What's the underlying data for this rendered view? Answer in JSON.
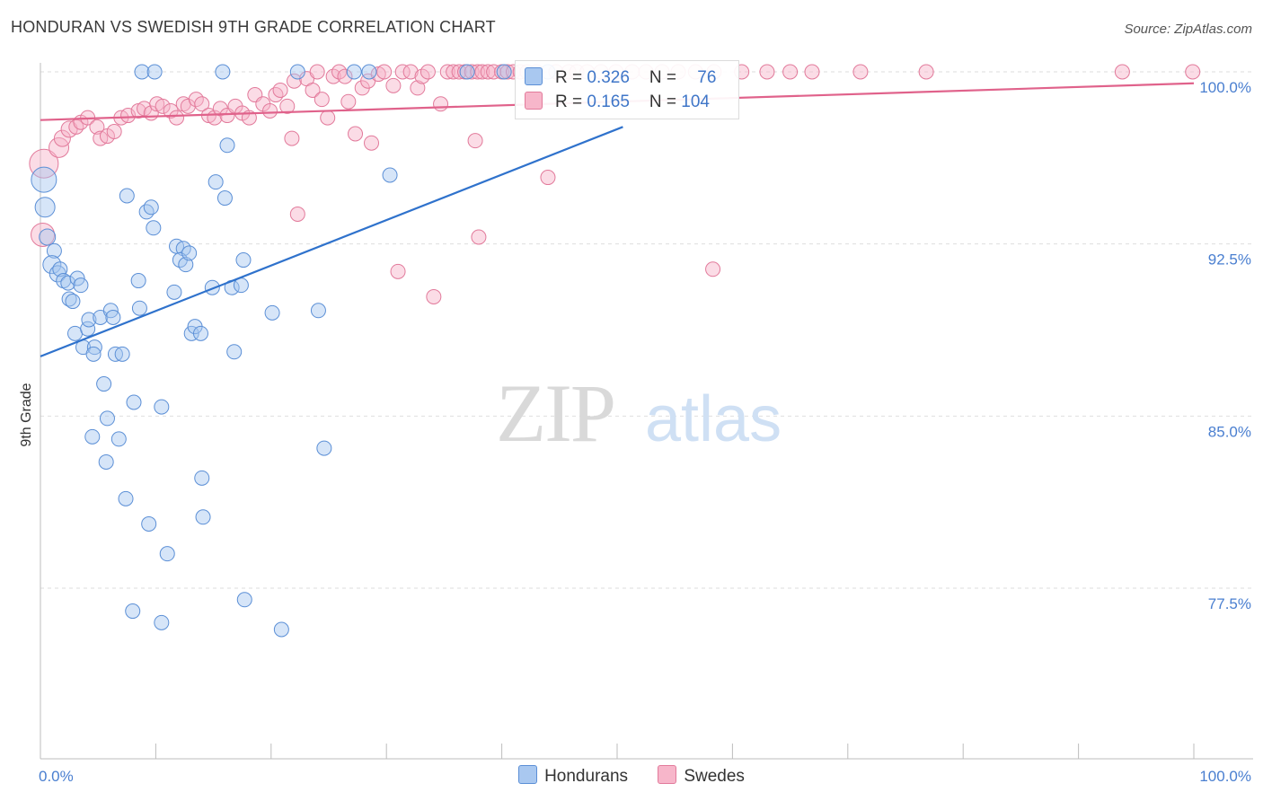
{
  "title": "HONDURAN VS SWEDISH 9TH GRADE CORRELATION CHART",
  "source": "Source: ZipAtlas.com",
  "watermark": {
    "zip": "ZIP",
    "atlas": "atlas"
  },
  "legend": {
    "rows": [
      {
        "r_label": "R = ",
        "r_value": "0.326",
        "n_label": "N = ",
        "n_value": "76",
        "color": "#a9c8f0",
        "border": "#5b8fd6"
      },
      {
        "r_label": "R = ",
        "r_value": "0.165",
        "n_label": "N = ",
        "n_value": "104",
        "color": "#f7b6ca",
        "border": "#e27a9b"
      }
    ]
  },
  "bottom_legend": [
    {
      "label": "Hondurans",
      "color": "#a9c8f0",
      "border": "#5b8fd6"
    },
    {
      "label": "Swedes",
      "color": "#f7b6ca",
      "border": "#e27a9b"
    }
  ],
  "chart_data": {
    "type": "scatter",
    "title": "HONDURAN VS SWEDISH 9TH GRADE CORRELATION CHART",
    "xlabel": "",
    "ylabel": "9th Grade",
    "xlim": [
      0,
      100
    ],
    "ylim": [
      70,
      100.5
    ],
    "x_tick_labels": [
      "0.0%",
      "100.0%"
    ],
    "y_ticks": [
      77.5,
      85.0,
      92.5,
      100.0
    ],
    "y_tick_labels": [
      "77.5%",
      "85.0%",
      "92.5%",
      "100.0%"
    ],
    "grid": true,
    "legend_position": "top-center",
    "colors": {
      "hondurans": "#5b8fd6",
      "swedes": "#e27a9b",
      "hondurans_line": "#2f72cc",
      "swedes_line": "#e0628b"
    },
    "series": [
      {
        "name": "Hondurans",
        "r": 0.326,
        "n": 76,
        "trend": {
          "x": [
            0,
            50.5
          ],
          "y": [
            87.6,
            97.6
          ]
        },
        "points": [
          [
            0.3,
            95.3,
            14
          ],
          [
            0.4,
            94.1,
            11
          ],
          [
            0.6,
            92.8,
            9
          ],
          [
            1.2,
            92.2,
            8
          ],
          [
            1.0,
            91.6,
            10
          ],
          [
            1.5,
            91.2,
            9
          ],
          [
            1.7,
            91.4,
            8
          ],
          [
            2.0,
            90.9,
            8
          ],
          [
            2.4,
            90.8,
            8
          ],
          [
            3.2,
            91.0,
            8
          ],
          [
            3.5,
            90.7,
            8
          ],
          [
            2.5,
            90.1,
            8
          ],
          [
            2.8,
            90.0,
            8
          ],
          [
            3.0,
            88.6,
            8
          ],
          [
            4.1,
            88.8,
            8
          ],
          [
            4.2,
            89.2,
            8
          ],
          [
            5.2,
            89.3,
            8
          ],
          [
            6.1,
            89.6,
            8
          ],
          [
            6.3,
            89.3,
            8
          ],
          [
            3.7,
            88.0,
            8
          ],
          [
            4.7,
            88.0,
            8
          ],
          [
            4.6,
            87.7,
            8
          ],
          [
            6.5,
            87.7,
            8
          ],
          [
            7.1,
            87.7,
            8
          ],
          [
            5.5,
            86.4,
            8
          ],
          [
            8.1,
            85.6,
            8
          ],
          [
            5.8,
            84.9,
            8
          ],
          [
            10.5,
            85.4,
            8
          ],
          [
            4.5,
            84.1,
            8
          ],
          [
            6.8,
            84.0,
            8
          ],
          [
            5.7,
            83.0,
            8
          ],
          [
            7.4,
            81.4,
            8
          ],
          [
            9.4,
            80.3,
            8
          ],
          [
            11.0,
            79.0,
            8
          ],
          [
            8.0,
            76.5,
            8
          ],
          [
            10.5,
            76.0,
            8
          ],
          [
            14.1,
            80.6,
            8
          ],
          [
            14.0,
            82.3,
            8
          ],
          [
            17.7,
            77.0,
            8
          ],
          [
            20.9,
            75.7,
            8
          ],
          [
            8.6,
            89.7,
            8
          ],
          [
            8.5,
            90.9,
            8
          ],
          [
            9.2,
            93.9,
            8
          ],
          [
            9.6,
            94.1,
            8
          ],
          [
            9.8,
            93.2,
            8
          ],
          [
            7.5,
            94.6,
            8
          ],
          [
            11.6,
            90.4,
            8
          ],
          [
            11.8,
            92.4,
            8
          ],
          [
            12.4,
            92.3,
            8
          ],
          [
            12.1,
            91.8,
            8
          ],
          [
            12.6,
            91.6,
            8
          ],
          [
            12.9,
            92.1,
            8
          ],
          [
            13.1,
            88.6,
            8
          ],
          [
            13.4,
            88.9,
            8
          ],
          [
            13.9,
            88.6,
            8
          ],
          [
            14.9,
            90.6,
            8
          ],
          [
            15.2,
            95.2,
            8
          ],
          [
            16.0,
            94.5,
            8
          ],
          [
            16.2,
            96.8,
            8
          ],
          [
            16.6,
            90.6,
            8
          ],
          [
            16.8,
            87.8,
            8
          ],
          [
            17.4,
            90.7,
            8
          ],
          [
            17.6,
            91.8,
            8
          ],
          [
            20.1,
            89.5,
            8
          ],
          [
            24.1,
            89.6,
            8
          ],
          [
            24.6,
            83.6,
            8
          ],
          [
            30.3,
            95.5,
            8
          ],
          [
            8.8,
            100.0,
            8
          ],
          [
            9.9,
            100.0,
            8
          ],
          [
            15.8,
            100.0,
            8
          ],
          [
            22.3,
            100.0,
            8
          ],
          [
            27.2,
            100.0,
            8
          ],
          [
            28.5,
            100.0,
            8
          ],
          [
            37.0,
            100.0,
            8
          ],
          [
            40.2,
            100.0,
            8
          ],
          [
            44.0,
            100.0,
            8
          ]
        ]
      },
      {
        "name": "Swedes",
        "r": 0.165,
        "n": 104,
        "trend": {
          "x": [
            0,
            100
          ],
          "y": [
            97.9,
            99.5
          ]
        },
        "points": [
          [
            0.3,
            96.0,
            16
          ],
          [
            0.2,
            92.9,
            13
          ],
          [
            1.6,
            96.7,
            11
          ],
          [
            1.9,
            97.1,
            9
          ],
          [
            2.5,
            97.5,
            9
          ],
          [
            3.1,
            97.6,
            8
          ],
          [
            3.5,
            97.8,
            8
          ],
          [
            4.1,
            98.0,
            8
          ],
          [
            4.9,
            97.6,
            8
          ],
          [
            5.2,
            97.1,
            8
          ],
          [
            5.8,
            97.2,
            8
          ],
          [
            6.4,
            97.4,
            8
          ],
          [
            7.0,
            98.0,
            8
          ],
          [
            7.6,
            98.1,
            8
          ],
          [
            8.5,
            98.3,
            8
          ],
          [
            9.0,
            98.4,
            8
          ],
          [
            9.6,
            98.2,
            8
          ],
          [
            10.1,
            98.6,
            8
          ],
          [
            10.6,
            98.5,
            8
          ],
          [
            11.3,
            98.3,
            8
          ],
          [
            11.8,
            98.0,
            8
          ],
          [
            12.4,
            98.6,
            8
          ],
          [
            12.8,
            98.5,
            8
          ],
          [
            13.5,
            98.8,
            8
          ],
          [
            14.0,
            98.6,
            8
          ],
          [
            14.6,
            98.1,
            8
          ],
          [
            15.1,
            98.0,
            8
          ],
          [
            15.6,
            98.4,
            8
          ],
          [
            16.2,
            98.1,
            8
          ],
          [
            16.9,
            98.5,
            8
          ],
          [
            17.5,
            98.2,
            8
          ],
          [
            18.1,
            98.0,
            8
          ],
          [
            18.6,
            99.0,
            8
          ],
          [
            19.3,
            98.6,
            8
          ],
          [
            19.9,
            98.3,
            8
          ],
          [
            20.4,
            99.0,
            8
          ],
          [
            20.8,
            99.2,
            8
          ],
          [
            21.4,
            98.5,
            8
          ],
          [
            21.8,
            97.1,
            8
          ],
          [
            22.3,
            93.8,
            8
          ],
          [
            22.0,
            99.6,
            8
          ],
          [
            23.1,
            99.7,
            8
          ],
          [
            23.6,
            99.2,
            8
          ],
          [
            24.0,
            100.0,
            8
          ],
          [
            24.4,
            98.8,
            8
          ],
          [
            24.9,
            98.0,
            8
          ],
          [
            25.4,
            99.8,
            8
          ],
          [
            25.9,
            100.0,
            8
          ],
          [
            26.4,
            99.8,
            8
          ],
          [
            26.7,
            98.7,
            8
          ],
          [
            27.3,
            97.3,
            8
          ],
          [
            27.9,
            99.3,
            8
          ],
          [
            28.4,
            99.6,
            8
          ],
          [
            28.7,
            96.9,
            8
          ],
          [
            29.3,
            99.9,
            8
          ],
          [
            29.8,
            100.0,
            8
          ],
          [
            30.6,
            99.4,
            8
          ],
          [
            31.0,
            91.3,
            8
          ],
          [
            31.4,
            100.0,
            8
          ],
          [
            32.1,
            100.0,
            8
          ],
          [
            32.7,
            99.3,
            8
          ],
          [
            33.1,
            99.8,
            8
          ],
          [
            33.6,
            100.0,
            8
          ],
          [
            34.1,
            90.2,
            8
          ],
          [
            34.7,
            98.6,
            8
          ],
          [
            35.3,
            100.0,
            8
          ],
          [
            35.8,
            100.0,
            8
          ],
          [
            36.3,
            100.0,
            8
          ],
          [
            36.8,
            100.0,
            8
          ],
          [
            37.4,
            100.0,
            8
          ],
          [
            37.9,
            100.0,
            8
          ],
          [
            38.3,
            100.0,
            8
          ],
          [
            38.8,
            100.0,
            8
          ],
          [
            39.3,
            100.0,
            8
          ],
          [
            40.0,
            100.0,
            8
          ],
          [
            40.5,
            100.0,
            8
          ],
          [
            41.0,
            100.0,
            8
          ],
          [
            41.6,
            100.0,
            8
          ],
          [
            42.2,
            100.0,
            8
          ],
          [
            43.0,
            100.0,
            8
          ],
          [
            44.7,
            100.0,
            8
          ],
          [
            45.8,
            100.0,
            8
          ],
          [
            46.5,
            100.0,
            8
          ],
          [
            47.4,
            100.0,
            8
          ],
          [
            48.6,
            100.0,
            8
          ],
          [
            49.9,
            100.0,
            8
          ],
          [
            51.3,
            100.0,
            8
          ],
          [
            52.5,
            100.0,
            8
          ],
          [
            53.9,
            100.0,
            8
          ],
          [
            55.3,
            100.0,
            8
          ],
          [
            56.8,
            100.0,
            8
          ],
          [
            58.4,
            100.0,
            8
          ],
          [
            60.8,
            100.0,
            8
          ],
          [
            63.0,
            100.0,
            8
          ],
          [
            65.0,
            100.0,
            8
          ],
          [
            66.9,
            100.0,
            8
          ],
          [
            71.1,
            100.0,
            8
          ],
          [
            76.8,
            100.0,
            8
          ],
          [
            93.8,
            100.0,
            8
          ],
          [
            99.9,
            100.0,
            8
          ],
          [
            37.7,
            97.0,
            8
          ],
          [
            38.0,
            92.8,
            8
          ],
          [
            44.0,
            95.4,
            8
          ],
          [
            58.3,
            91.4,
            8
          ]
        ]
      }
    ]
  }
}
